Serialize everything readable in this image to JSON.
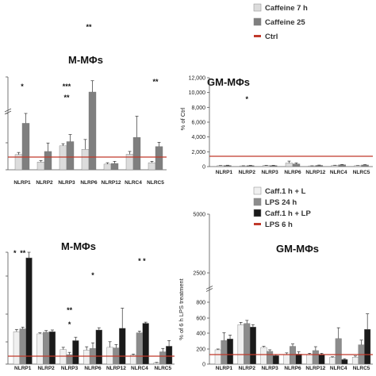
{
  "legend_top": {
    "items": [
      {
        "label": "Caffeine 7 h",
        "color": "#dcdcdc"
      },
      {
        "label": "Caffeine 25",
        "color": "#7f7f7f"
      },
      {
        "label": "Ctrl",
        "color": "#c0392b",
        "kind": "line"
      }
    ]
  },
  "legend_bottom": {
    "items": [
      {
        "label": "Caff.1 h + L",
        "color": "#f0f0f0"
      },
      {
        "label": "LPS 24 h",
        "color": "#8c8c8c"
      },
      {
        "label": "Caff.1 h + LP",
        "color": "#1a1a1a"
      },
      {
        "label": "LPS 6 h",
        "color": "#c0392b",
        "kind": "line"
      }
    ]
  },
  "chart_data": [
    {
      "type": "bar",
      "title": "M-MΦs",
      "categories": [
        "NLRP1",
        "NLRP2",
        "NLRP3",
        "NLRP6",
        "NLRP12",
        "NLRC4",
        "NLRC5"
      ],
      "series": [
        {
          "name": "Caffeine 7 h",
          "color": "#dcdcdc",
          "values": [
            108,
            55,
            170,
            145,
            40,
            110,
            50
          ],
          "errors": [
            15,
            10,
            15,
            70,
            10,
            20,
            10
          ]
        },
        {
          "name": "Caffeine 25",
          "color": "#7f7f7f",
          "values": [
            330,
            130,
            200,
            6000,
            45,
            230,
            165
          ],
          "errors": [
            70,
            60,
            50,
            1500,
            15,
            150,
            30
          ]
        }
      ],
      "reference_line": 100,
      "annotations": [
        "*",
        "**",
        "***",
        "**",
        "**"
      ]
    },
    {
      "type": "bar",
      "title": "GM-MΦs",
      "ylabel": "% of Ctrl",
      "yticks": [
        "12,000",
        "10,000",
        "8,000",
        "6,000",
        "4,000",
        "2,000",
        "0"
      ],
      "ylim": [
        0,
        12000
      ],
      "categories": [
        "NLRP1",
        "NLRP2",
        "NLRP3",
        "NLRP6",
        "NLRP12",
        "NLRC4",
        "NLRC5"
      ],
      "series": [
        {
          "name": "Caffeine 7 h",
          "color": "#dcdcdc",
          "values": [
            120,
            100,
            155,
            480,
            100,
            160,
            125
          ],
          "errors": [
            20,
            15,
            20,
            260,
            10,
            25,
            15
          ]
        },
        {
          "name": "Caffeine 25",
          "color": "#7f7f7f",
          "values": [
            155,
            145,
            145,
            360,
            165,
            250,
            220
          ],
          "errors": [
            30,
            20,
            25,
            140,
            40,
            40,
            45
          ]
        }
      ],
      "reference_line": 100,
      "annotations": [
        "*"
      ]
    },
    {
      "type": "bar",
      "title": "M-MΦs",
      "categories": [
        "NLRP1",
        "NLRP2",
        "NLRP3",
        "NLRP6",
        "NLRP12",
        "NLRC4",
        "NLRC5"
      ],
      "series": [
        {
          "name": "Caff.1 h + L",
          "color": "#f0f0f0",
          "values": [
            290,
            270,
            130,
            125,
            150,
            80,
            10
          ],
          "errors": [
            20,
            10,
            20,
            30,
            50,
            10,
            5
          ]
        },
        {
          "name": "LPS 24 h",
          "color": "#8c8c8c",
          "values": [
            315,
            285,
            85,
            140,
            145,
            280,
            110
          ],
          "errors": [
            15,
            15,
            20,
            50,
            30,
            15,
            30
          ]
        },
        {
          "name": "Caff.1 h + LP",
          "color": "#1a1a1a",
          "values": [
            950,
            290,
            210,
            305,
            320,
            365,
            160
          ],
          "errors": [
            180,
            15,
            30,
            20,
            180,
            10,
            50
          ]
        }
      ],
      "reference_line": 100,
      "annotations": [
        "*",
        "**",
        "*",
        "**",
        "*",
        "*",
        "*"
      ]
    },
    {
      "type": "bar",
      "title": "GM-MΦs",
      "ylabel": "% of 6 h LPS treatment",
      "yticks": [
        "5000",
        "2500",
        "800",
        "600",
        "400",
        "200",
        "0"
      ],
      "categories": [
        "NLRP1",
        "NLRP2",
        "NLRP3",
        "NLRP6",
        "NLRP12",
        "NLRC4",
        "NLRC5"
      ],
      "series": [
        {
          "name": "Caff.1 h + L",
          "color": "#f0f0f0",
          "values": [
            185,
            510,
            215,
            125,
            120,
            85,
            90
          ],
          "errors": [
            10,
            30,
            15,
            20,
            20,
            10,
            15
          ]
        },
        {
          "name": "LPS 24 h",
          "color": "#8c8c8c",
          "values": [
            305,
            525,
            165,
            230,
            175,
            330,
            250
          ],
          "errors": [
            100,
            40,
            20,
            30,
            50,
            140,
            60
          ]
        },
        {
          "name": "Caff.1 h + LP",
          "color": "#1a1a1a",
          "values": [
            325,
            480,
            110,
            130,
            120,
            60,
            450
          ],
          "errors": [
            50,
            30,
            10,
            30,
            20,
            10,
            200
          ]
        }
      ],
      "reference_line": 100
    }
  ]
}
